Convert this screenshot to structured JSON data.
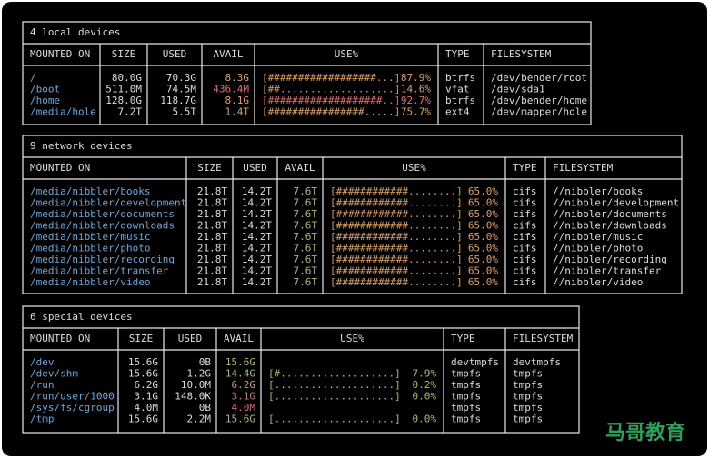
{
  "sections": [
    {
      "title": "4 local devices",
      "columns": [
        "MOUNTED ON",
        "SIZE",
        "USED",
        "AVAIL",
        "USE%",
        "TYPE",
        "FILESYSTEM"
      ],
      "rows": [
        {
          "mounted_on": "/",
          "size": "80.0G",
          "used": "70.3G",
          "avail": "8.3G",
          "avail_color": "#d9a066",
          "use_bar": "[##################...]",
          "use_pct": "87.9%",
          "use_color": "#d9a066",
          "type": "btrfs",
          "filesystem": "/dev/bender/root"
        },
        {
          "mounted_on": "/boot",
          "size": "511.0M",
          "used": "74.5M",
          "avail": "436.4M",
          "avail_color": "#e06c6c",
          "use_bar": "[##...................]",
          "use_pct": "14.6%",
          "use_color": "#d9a066",
          "type": "vfat",
          "filesystem": "/dev/sda1"
        },
        {
          "mounted_on": "/home",
          "size": "128.0G",
          "used": "118.7G",
          "avail": "8.1G",
          "avail_color": "#d9a066",
          "use_bar": "[###################..]",
          "use_pct": "92.7%",
          "use_color": "#e06c6c",
          "type": "btrfs",
          "filesystem": "/dev/bender/home"
        },
        {
          "mounted_on": "/media/hole",
          "size": "7.2T",
          "used": "5.5T",
          "avail": "1.4T",
          "avail_color": "#d9a066",
          "use_bar": "[################.....]",
          "use_pct": "75.7%",
          "use_color": "#d9a066",
          "type": "ext4",
          "filesystem": "/dev/mapper/hole"
        }
      ]
    },
    {
      "title": "9 network devices",
      "columns": [
        "MOUNTED ON",
        "SIZE",
        "USED",
        "AVAIL",
        "USE%",
        "TYPE",
        "FILESYSTEM"
      ],
      "rows": [
        {
          "mounted_on": "/media/nibbler/books",
          "size": "21.8T",
          "used": "14.2T",
          "avail": "7.6T",
          "avail_color": "#a8c060",
          "use_bar": "[############........]",
          "use_pct": "65.0%",
          "use_color": "#d9a066",
          "type": "cifs",
          "filesystem": "//nibbler/books"
        },
        {
          "mounted_on": "/media/nibbler/development",
          "size": "21.8T",
          "used": "14.2T",
          "avail": "7.6T",
          "avail_color": "#a8c060",
          "use_bar": "[############........]",
          "use_pct": "65.0%",
          "use_color": "#d9a066",
          "type": "cifs",
          "filesystem": "//nibbler/development"
        },
        {
          "mounted_on": "/media/nibbler/documents",
          "size": "21.8T",
          "used": "14.2T",
          "avail": "7.6T",
          "avail_color": "#a8c060",
          "use_bar": "[############........]",
          "use_pct": "65.0%",
          "use_color": "#d9a066",
          "type": "cifs",
          "filesystem": "//nibbler/documents"
        },
        {
          "mounted_on": "/media/nibbler/downloads",
          "size": "21.8T",
          "used": "14.2T",
          "avail": "7.6T",
          "avail_color": "#a8c060",
          "use_bar": "[############........]",
          "use_pct": "65.0%",
          "use_color": "#d9a066",
          "type": "cifs",
          "filesystem": "//nibbler/downloads"
        },
        {
          "mounted_on": "/media/nibbler/music",
          "size": "21.8T",
          "used": "14.2T",
          "avail": "7.6T",
          "avail_color": "#a8c060",
          "use_bar": "[############........]",
          "use_pct": "65.0%",
          "use_color": "#d9a066",
          "type": "cifs",
          "filesystem": "//nibbler/music"
        },
        {
          "mounted_on": "/media/nibbler/photo",
          "size": "21.8T",
          "used": "14.2T",
          "avail": "7.6T",
          "avail_color": "#a8c060",
          "use_bar": "[############........]",
          "use_pct": "65.0%",
          "use_color": "#d9a066",
          "type": "cifs",
          "filesystem": "//nibbler/photo"
        },
        {
          "mounted_on": "/media/nibbler/recording",
          "size": "21.8T",
          "used": "14.2T",
          "avail": "7.6T",
          "avail_color": "#a8c060",
          "use_bar": "[############........]",
          "use_pct": "65.0%",
          "use_color": "#d9a066",
          "type": "cifs",
          "filesystem": "//nibbler/recording"
        },
        {
          "mounted_on": "/media/nibbler/transfer",
          "size": "21.8T",
          "used": "14.2T",
          "avail": "7.6T",
          "avail_color": "#a8c060",
          "use_bar": "[############........]",
          "use_pct": "65.0%",
          "use_color": "#d9a066",
          "type": "cifs",
          "filesystem": "//nibbler/transfer"
        },
        {
          "mounted_on": "/media/nibbler/video",
          "size": "21.8T",
          "used": "14.2T",
          "avail": "7.6T",
          "avail_color": "#a8c060",
          "use_bar": "[############........]",
          "use_pct": "65.0%",
          "use_color": "#d9a066",
          "type": "cifs",
          "filesystem": "//nibbler/video"
        }
      ]
    },
    {
      "title": "6 special devices",
      "columns": [
        "MOUNTED ON",
        "SIZE",
        "USED",
        "AVAIL",
        "USE%",
        "TYPE",
        "FILESYSTEM"
      ],
      "rows": [
        {
          "mounted_on": "/dev",
          "size": "15.6G",
          "used": "0B",
          "avail": "15.6G",
          "avail_color": "#a8c060",
          "type": "devtmpfs",
          "filesystem": "devtmpfs"
        },
        {
          "mounted_on": "/dev/shm",
          "size": "15.6G",
          "used": "1.2G",
          "avail": "14.4G",
          "avail_color": "#a8c060",
          "use_bar": "[#...................]",
          "use_pct": "7.9%",
          "use_color": "#a8c060",
          "type": "tmpfs",
          "filesystem": "tmpfs"
        },
        {
          "mounted_on": "/run",
          "size": "6.2G",
          "used": "10.0M",
          "avail": "6.2G",
          "avail_color": "#d9a066",
          "use_bar": "[....................]",
          "use_pct": "0.2%",
          "use_color": "#a8c060",
          "type": "tmpfs",
          "filesystem": "tmpfs"
        },
        {
          "mounted_on": "/run/user/1000",
          "size": "3.1G",
          "used": "148.0K",
          "avail": "3.1G",
          "avail_color": "#e06c6c",
          "use_bar": "[....................]",
          "use_pct": "0.0%",
          "use_color": "#a8c060",
          "type": "tmpfs",
          "filesystem": "tmpfs"
        },
        {
          "mounted_on": "/sys/fs/cgroup",
          "size": "4.0M",
          "used": "0B",
          "avail": "4.0M",
          "avail_color": "#e06c6c",
          "type": "tmpfs",
          "filesystem": "tmpfs"
        },
        {
          "mounted_on": "/tmp",
          "size": "15.6G",
          "used": "2.2M",
          "avail": "15.6G",
          "avail_color": "#a8c060",
          "use_bar": "[....................]",
          "use_pct": "0.0%",
          "use_color": "#a8c060",
          "type": "tmpfs",
          "filesystem": "tmpfs"
        }
      ]
    }
  ],
  "watermark": "马哥教育"
}
